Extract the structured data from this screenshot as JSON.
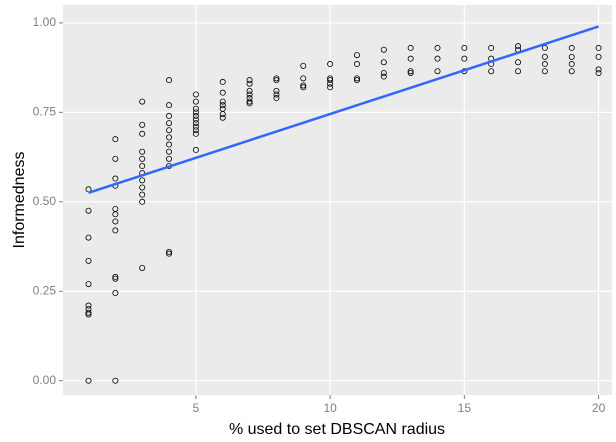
{
  "chart_data": {
    "type": "scatter",
    "xlabel": "% used to set DBSCAN radius",
    "ylabel": "Informedness",
    "xlim": [
      0.05,
      20.5
    ],
    "ylim": [
      -0.04,
      1.05
    ],
    "xticks": [
      5,
      10,
      15,
      20
    ],
    "yticks": [
      {
        "value": 0,
        "label": "0.00"
      },
      {
        "value": 0.25,
        "label": "0.25"
      },
      {
        "value": 0.5,
        "label": "0.50"
      },
      {
        "value": 0.75,
        "label": "0.75"
      },
      {
        "value": 1,
        "label": "1.00"
      }
    ],
    "grid": true,
    "series": [
      {
        "kind": "points",
        "color": "#000000",
        "x": [
          1,
          1,
          1,
          1,
          1,
          1,
          1,
          1,
          1,
          1,
          2,
          2,
          2,
          2,
          2,
          2,
          2,
          2,
          2,
          2,
          2,
          2,
          3,
          3,
          3,
          3,
          3,
          3,
          3,
          3,
          3,
          3,
          3,
          3,
          4,
          4,
          4,
          4,
          4,
          4,
          4,
          4,
          4,
          4,
          4,
          4,
          5,
          5,
          5,
          5,
          5,
          5,
          5,
          5,
          5,
          5,
          5,
          6,
          6,
          6,
          6,
          6,
          6,
          6,
          7,
          7,
          7,
          7,
          7,
          7,
          7,
          8,
          8,
          8,
          8,
          8,
          9,
          9,
          9,
          9,
          10,
          10,
          10,
          10,
          10,
          11,
          11,
          11,
          11,
          12,
          12,
          12,
          12,
          13,
          13,
          13,
          13,
          14,
          14,
          14,
          15,
          15,
          15,
          16,
          16,
          16,
          16,
          17,
          17,
          17,
          17,
          18,
          18,
          18,
          18,
          19,
          19,
          19,
          19,
          20,
          20,
          20,
          20
        ],
        "values": [
          0.535,
          0.475,
          0.4,
          0.335,
          0.27,
          0.21,
          0.2,
          0.19,
          0.185,
          0.0,
          0.675,
          0.62,
          0.565,
          0.545,
          0.48,
          0.465,
          0.445,
          0.42,
          0.29,
          0.285,
          0.245,
          0.0,
          0.78,
          0.715,
          0.69,
          0.64,
          0.62,
          0.6,
          0.58,
          0.56,
          0.54,
          0.52,
          0.5,
          0.315,
          0.84,
          0.77,
          0.74,
          0.72,
          0.7,
          0.68,
          0.66,
          0.64,
          0.62,
          0.6,
          0.36,
          0.355,
          0.8,
          0.78,
          0.76,
          0.75,
          0.74,
          0.73,
          0.72,
          0.71,
          0.7,
          0.69,
          0.645,
          0.835,
          0.805,
          0.78,
          0.77,
          0.76,
          0.745,
          0.735,
          0.84,
          0.83,
          0.81,
          0.8,
          0.79,
          0.78,
          0.775,
          0.845,
          0.84,
          0.81,
          0.8,
          0.79,
          0.88,
          0.845,
          0.825,
          0.82,
          0.885,
          0.845,
          0.84,
          0.83,
          0.82,
          0.91,
          0.885,
          0.845,
          0.84,
          0.925,
          0.89,
          0.86,
          0.85,
          0.93,
          0.9,
          0.865,
          0.86,
          0.93,
          0.9,
          0.865,
          0.93,
          0.9,
          0.865,
          0.93,
          0.9,
          0.885,
          0.865,
          0.935,
          0.925,
          0.89,
          0.865,
          0.93,
          0.905,
          0.885,
          0.865,
          0.93,
          0.905,
          0.885,
          0.865,
          0.93,
          0.905,
          0.87,
          0.86
        ]
      },
      {
        "kind": "line",
        "color": "#3366ff",
        "x": [
          1,
          20
        ],
        "values": [
          0.525,
          0.99
        ]
      }
    ]
  }
}
